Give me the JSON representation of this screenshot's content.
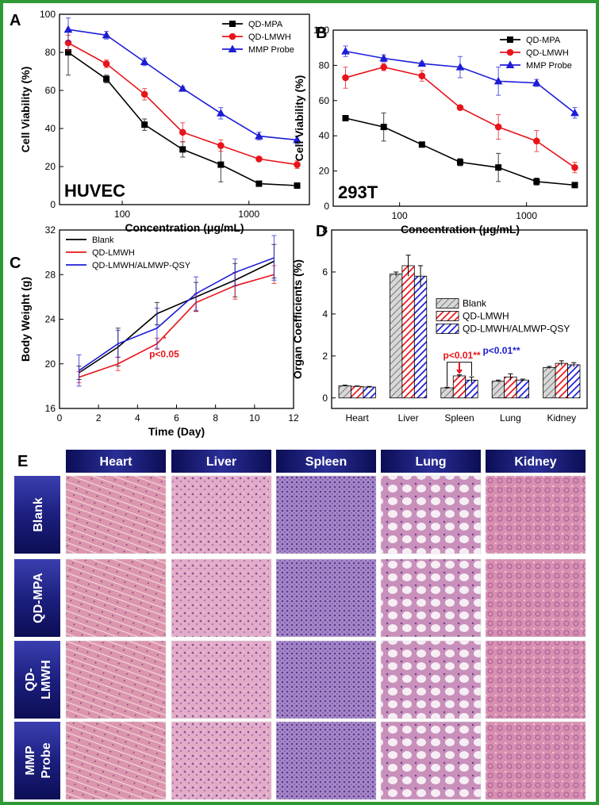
{
  "chart_data": [
    {
      "type": "line",
      "panel": "A",
      "annotation": "HUVEC",
      "xlabel": "Concentration (μg/mL)",
      "ylabel": "Cell Viability (%)",
      "xscale": "log",
      "x": [
        37.5,
        75,
        150,
        300,
        600,
        1200,
        2400
      ],
      "xlim": [
        32,
        3000
      ],
      "xticks": [
        100,
        1000
      ],
      "ylim": [
        0,
        100
      ],
      "yticks": [
        0,
        20,
        40,
        60,
        80,
        100
      ],
      "legend": "upper right",
      "series": [
        {
          "name": "QD-MPA",
          "color": "#000000",
          "marker": "square",
          "values": [
            80,
            66,
            42,
            29,
            21,
            11,
            10
          ],
          "errors": [
            12,
            2,
            3,
            4,
            9,
            1,
            1
          ]
        },
        {
          "name": "QD-LMWH",
          "color": "#e8141a",
          "marker": "circle",
          "values": [
            85,
            74,
            58,
            38,
            31,
            24,
            21
          ],
          "errors": [
            4,
            2,
            3,
            5,
            3,
            1,
            2
          ]
        },
        {
          "name": "MMP Probe",
          "color": "#1d1dd6",
          "marker": "triangle",
          "values": [
            92,
            89,
            75,
            61,
            48,
            36,
            34
          ],
          "errors": [
            6,
            2,
            2,
            1,
            3,
            2,
            2
          ]
        }
      ]
    },
    {
      "type": "line",
      "panel": "B",
      "annotation": "293T",
      "xlabel": "Concentration (μg/mL)",
      "ylabel": "Cell Viability (%)",
      "xscale": "log",
      "x": [
        37.5,
        75,
        150,
        300,
        600,
        1200,
        2400
      ],
      "xlim": [
        30,
        3000
      ],
      "xticks": [
        100,
        1000
      ],
      "ylim": [
        0,
        100
      ],
      "yticks": [
        0,
        20,
        40,
        60,
        80,
        100
      ],
      "legend": "upper right",
      "series": [
        {
          "name": "QD-MPA",
          "color": "#000000",
          "marker": "square",
          "values": [
            50,
            45,
            35,
            25,
            22,
            14,
            12
          ],
          "errors": [
            1,
            8,
            1,
            2,
            8,
            2,
            1
          ]
        },
        {
          "name": "QD-LMWH",
          "color": "#e8141a",
          "marker": "circle",
          "values": [
            73,
            79,
            74,
            56,
            45,
            37,
            22
          ],
          "errors": [
            6,
            2,
            3,
            1,
            7,
            6,
            3
          ]
        },
        {
          "name": "MMP Probe",
          "color": "#1d1dd6",
          "marker": "triangle",
          "values": [
            88,
            84,
            81,
            79,
            71,
            70,
            53
          ],
          "errors": [
            3,
            2,
            1,
            6,
            8,
            2,
            3
          ]
        }
      ]
    },
    {
      "type": "line",
      "panel": "C",
      "xlabel": "Time (Day)",
      "ylabel": "Body Weight (g)",
      "x": [
        1,
        3,
        5,
        7,
        9,
        11
      ],
      "xlim": [
        0,
        12
      ],
      "xticks": [
        0,
        2,
        4,
        6,
        8,
        10,
        12
      ],
      "ylim": [
        16,
        32
      ],
      "yticks": [
        16,
        20,
        24,
        28,
        32
      ],
      "legend": "upper left",
      "annotations": [
        {
          "text": "*",
          "color": "#e8141a"
        },
        {
          "text": "p<0.05",
          "color": "#e8141a"
        }
      ],
      "series": [
        {
          "name": "Blank",
          "color": "#000000",
          "values": [
            19.2,
            21.5,
            24.5,
            26,
            27.5,
            29.2
          ],
          "errors": [
            0.6,
            1.7,
            1,
            1.3,
            1.5,
            1.5
          ]
        },
        {
          "name": "QD-LMWH",
          "color": "#e8141a",
          "values": [
            18.8,
            20,
            21.8,
            25.5,
            27,
            28
          ],
          "errors": [
            0.5,
            0.6,
            0.5,
            0.8,
            1.2,
            0.8
          ]
        },
        {
          "name": "QD-LMWH/ALMWP-QSY",
          "color": "#1d1dd6",
          "values": [
            19.4,
            21.8,
            23.2,
            26.3,
            28.2,
            29.5
          ],
          "errors": [
            1.4,
            1.2,
            1.8,
            1.5,
            1.2,
            2
          ]
        }
      ]
    },
    {
      "type": "bar",
      "panel": "D",
      "ylabel": "Organ Coefficients (%)",
      "categories": [
        "Heart",
        "Liver",
        "Spleen",
        "Lung",
        "Kidney"
      ],
      "ylim": [
        -0.5,
        8
      ],
      "yticks": [
        0,
        2,
        4,
        6,
        8
      ],
      "legend": "center right",
      "annotations": [
        {
          "text": "p<0.01**",
          "color": "#e8141a"
        },
        {
          "text": "p<0.01**",
          "color": "#1d1dd6"
        }
      ],
      "series": [
        {
          "name": "Blank",
          "color": "#c8c8c8",
          "values": [
            0.58,
            5.9,
            0.48,
            0.8,
            1.45
          ],
          "errors": [
            0.03,
            0.1,
            0.03,
            0.05,
            0.05
          ]
        },
        {
          "name": "QD-LMWH",
          "color": "#e8141a",
          "values": [
            0.55,
            6.3,
            1.05,
            1.0,
            1.65
          ],
          "errors": [
            0.02,
            0.5,
            0.05,
            0.15,
            0.12
          ]
        },
        {
          "name": "QD-LMWH/ALMWP-QSY",
          "color": "#1d1dd6",
          "values": [
            0.52,
            5.8,
            0.85,
            0.85,
            1.58
          ],
          "errors": [
            0.03,
            0.5,
            0.15,
            0.05,
            0.1
          ]
        }
      ]
    }
  ],
  "histology": {
    "panel": "E",
    "columns": [
      "Heart",
      "Liver",
      "Spleen",
      "Lung",
      "Kidney"
    ],
    "rows": [
      [
        "Blank"
      ],
      [
        "QD-MPA"
      ],
      [
        "QD-",
        "LMWH"
      ],
      [
        "MMP",
        "Probe"
      ]
    ]
  }
}
